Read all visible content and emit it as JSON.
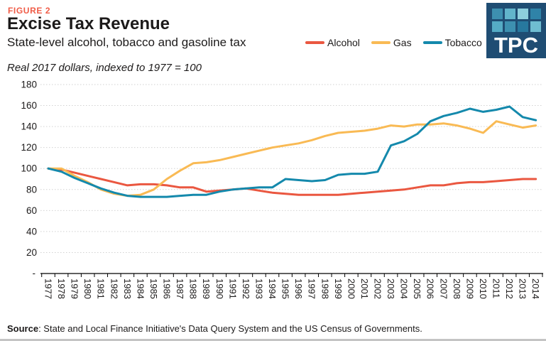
{
  "header": {
    "figure_label": "FIGURE 2",
    "title": "Excise Tax Revenue",
    "subtitle": "State-level alcohol, tobacco and gasoline tax",
    "axis_note": "Real 2017 dollars, indexed to 1977 = 100"
  },
  "logo": {
    "text": "TPC",
    "bg_color": "#1F4D73",
    "square_colors": [
      "#3D90B0",
      "#62B5CB",
      "#8ECFDD",
      "#2F83A8",
      "#55ABC5",
      "#3D90B0",
      "#27789E",
      "#6FBDD1"
    ]
  },
  "legend": [
    {
      "label": "Alcohol",
      "color": "#EA5740"
    },
    {
      "label": "Gas",
      "color": "#F9BA54"
    },
    {
      "label": "Tobacco",
      "color": "#1489AC"
    }
  ],
  "source": {
    "label": "Source",
    "text": ": State and Local Finance Initiative's Data Query System and the US Census of Governments."
  },
  "colors": {
    "figure_label": "#F05C47",
    "grid": "#D2D2D2",
    "axis": "#000000",
    "tick_text": "#1c1a1a"
  },
  "chart_data": {
    "type": "line",
    "title": "Excise Tax Revenue",
    "subtitle": "State-level alcohol, tobacco and gasoline tax",
    "units_note": "Real 2017 dollars, indexed to 1977 = 100",
    "x": [
      1977,
      1978,
      1979,
      1980,
      1981,
      1982,
      1983,
      1984,
      1985,
      1986,
      1987,
      1988,
      1989,
      1990,
      1991,
      1992,
      1993,
      1994,
      1995,
      1996,
      1997,
      1998,
      1999,
      2000,
      2001,
      2002,
      2003,
      2004,
      2005,
      2006,
      2007,
      2008,
      2009,
      2010,
      2011,
      2012,
      2013,
      2014
    ],
    "series": [
      {
        "name": "Alcohol",
        "color": "#EA5740",
        "values": [
          100,
          99,
          96,
          93,
          90,
          87,
          84,
          85,
          85,
          84,
          82,
          82,
          78,
          79,
          80,
          81,
          79,
          77,
          76,
          75,
          75,
          75,
          75,
          76,
          77,
          78,
          79,
          80,
          82,
          84,
          84,
          86,
          87,
          87,
          88,
          89,
          90,
          90
        ]
      },
      {
        "name": "Gas",
        "color": "#F9BA54",
        "values": [
          100,
          100,
          93,
          87,
          80,
          76,
          74,
          75,
          80,
          90,
          98,
          105,
          106,
          108,
          111,
          114,
          117,
          120,
          122,
          124,
          127,
          131,
          134,
          135,
          136,
          138,
          141,
          140,
          142,
          142,
          143,
          141,
          138,
          134,
          145,
          142,
          139,
          141
        ]
      },
      {
        "name": "Tobacco",
        "color": "#1489AC",
        "values": [
          100,
          97,
          91,
          86,
          81,
          77,
          74,
          73,
          73,
          73,
          74,
          75,
          75,
          78,
          80,
          81,
          82,
          82,
          90,
          89,
          88,
          89,
          94,
          95,
          95,
          97,
          122,
          126,
          133,
          145,
          150,
          153,
          157,
          154,
          156,
          159,
          149,
          146
        ]
      }
    ],
    "ylim": [
      0,
      180
    ],
    "ytick_step": 20,
    "zero_tick_label": "-",
    "grid": "horizontal-dotted",
    "legend_position": "top-right",
    "x_tick_label_rotation": "vertical"
  }
}
